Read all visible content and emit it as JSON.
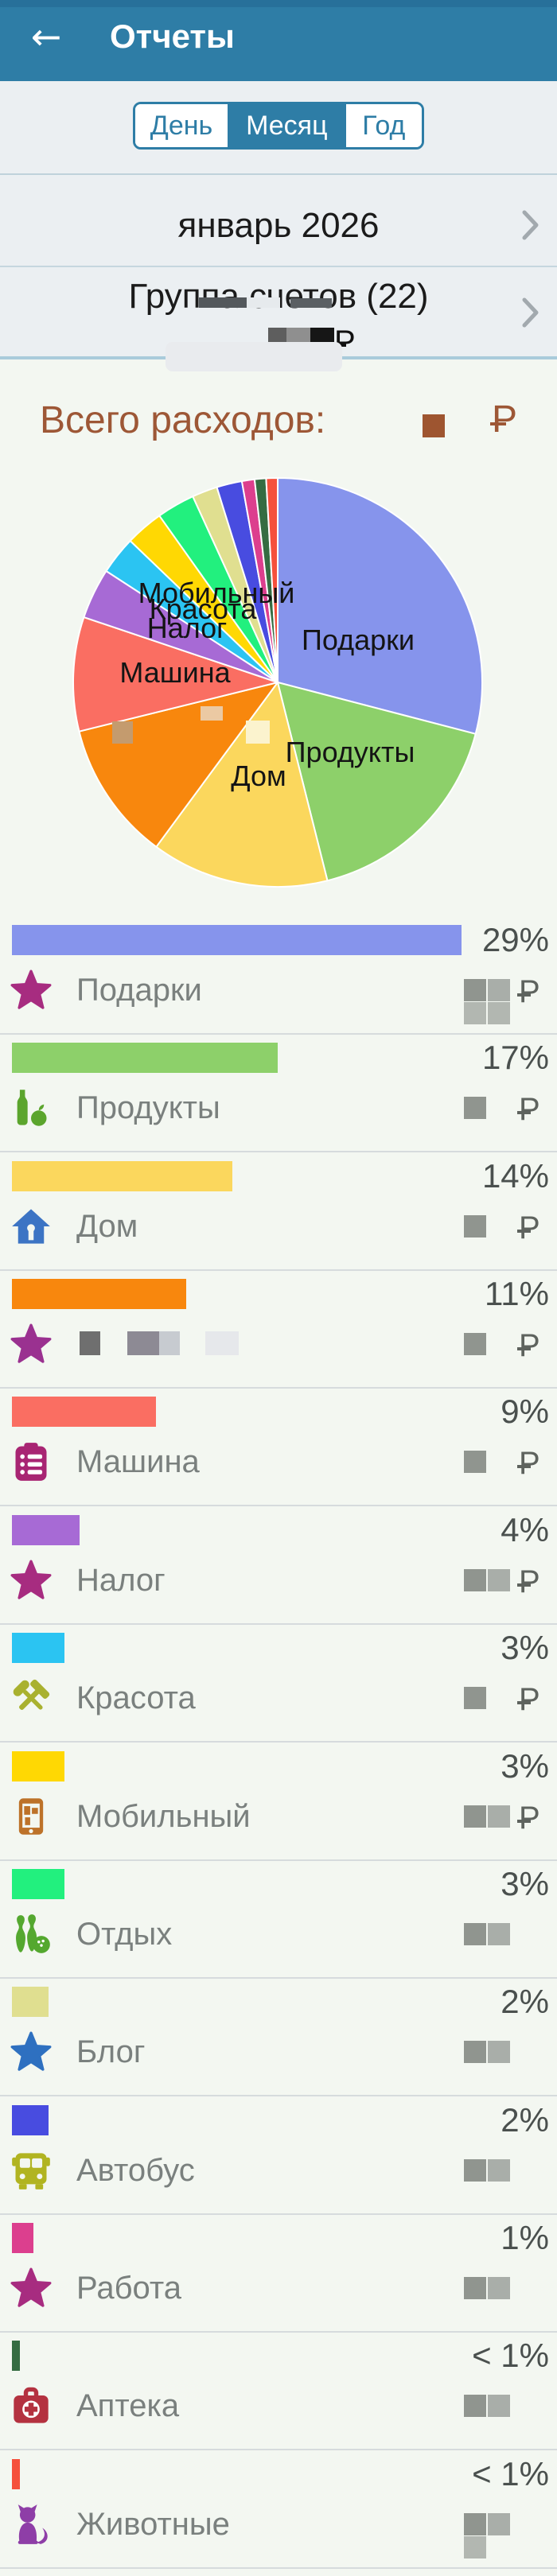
{
  "header": {
    "title": "Отчеты",
    "back_icon": "arrow-left"
  },
  "tabs": {
    "items": [
      {
        "label": "День",
        "selected": false
      },
      {
        "label": "Месяц",
        "selected": true
      },
      {
        "label": "Год",
        "selected": false
      }
    ]
  },
  "filters": {
    "period": "январь 2026",
    "group": "Группа счетов (22)",
    "group_amount_redacted": true,
    "currency": "₽"
  },
  "summary": {
    "total_label": "Всего расходов:",
    "amount_redacted": true,
    "currency": "₽",
    "accent_color": "#9D5736"
  },
  "chart_data": {
    "type": "pie",
    "title": "Всего расходов",
    "unit": "percent",
    "start_angle": "12 o'clock, clockwise",
    "legend_position": "list below chart",
    "slices": [
      {
        "label": "Подарки",
        "value": 29,
        "color": "#8694EC"
      },
      {
        "label": "Продукты",
        "value": 17,
        "color": "#8DD06A"
      },
      {
        "label": "Дом",
        "value": 14,
        "color": "#FBD75D"
      },
      {
        "label": "",
        "value": 11,
        "color": "#F8870D",
        "redacted": true
      },
      {
        "label": "Машина",
        "value": 9,
        "color": "#FA6E62"
      },
      {
        "label": "Налог",
        "value": 4,
        "color": "#A76AD5"
      },
      {
        "label": "Красота",
        "value": 3,
        "color": "#2BC4F2"
      },
      {
        "label": "Мобильный",
        "value": 3,
        "color": "#FFD803"
      },
      {
        "label": "Отдых",
        "value": 3,
        "color": "#22F07E"
      },
      {
        "label": "Блог",
        "value": 2,
        "color": "#E0DF90"
      },
      {
        "label": "Автобус",
        "value": 2,
        "color": "#484CE0"
      },
      {
        "label": "Работа",
        "value": 1,
        "color": "#DC3F8E"
      },
      {
        "label": "Аптека",
        "value": 0.9,
        "color": "#356C42"
      },
      {
        "label": "Животные",
        "value": 0.9,
        "color": "#F5503C"
      }
    ],
    "labels_on_pie": [
      "Подарки",
      "Продукты",
      "Дом",
      "Машина",
      "Налог",
      "Красота",
      "Мобильный"
    ]
  },
  "expenses": [
    {
      "label": "Подарки",
      "percent": "29%",
      "value": 29,
      "color": "#8694EC",
      "icon": "star-icon",
      "icon_color": "#A72C80",
      "amount_redacted": true,
      "currency_visible": true,
      "blocks": 4
    },
    {
      "label": "Продукты",
      "percent": "17%",
      "value": 17,
      "color": "#8DD06A",
      "icon": "groceries-icon",
      "icon_color": "#5BA52D",
      "amount_redacted": true,
      "currency_visible": true,
      "blocks": 1
    },
    {
      "label": "Дом",
      "percent": "14%",
      "value": 14,
      "color": "#FBD75D",
      "icon": "house-icon",
      "icon_color": "#3C74C4",
      "amount_redacted": true,
      "currency_visible": true,
      "blocks": 1
    },
    {
      "label": "",
      "percent": "11%",
      "value": 11,
      "color": "#F8870D",
      "icon": "star-icon",
      "icon_color": "#9A3190",
      "amount_redacted": true,
      "currency_visible": true,
      "blocks": 1,
      "label_redacted": true
    },
    {
      "label": "Машина",
      "percent": "9%",
      "value": 9,
      "color": "#FA6E62",
      "icon": "clipboard-list-icon",
      "icon_color": "#A82573",
      "amount_redacted": true,
      "currency_visible": true,
      "blocks": 1
    },
    {
      "label": "Налог",
      "percent": "4%",
      "value": 4,
      "color": "#A76AD5",
      "icon": "star-icon",
      "icon_color": "#A72C80",
      "amount_redacted": true,
      "currency_visible": true,
      "blocks": 2
    },
    {
      "label": "Красота",
      "percent": "3%",
      "value": 3,
      "color": "#2BC4F2",
      "icon": "tools-icon",
      "icon_color": "#A9B12F",
      "amount_redacted": true,
      "currency_visible": true,
      "blocks": 1
    },
    {
      "label": "Мобильный",
      "percent": "3%",
      "value": 3,
      "color": "#FFD803",
      "icon": "phone-icon",
      "icon_color": "#BD7229",
      "amount_redacted": true,
      "currency_visible": true,
      "blocks": 2
    },
    {
      "label": "Отдых",
      "percent": "3%",
      "value": 3,
      "color": "#22F07E",
      "icon": "bowling-icon",
      "icon_color": "#54A82F",
      "amount_redacted": true,
      "currency_visible": false,
      "blocks": 2
    },
    {
      "label": "Блог",
      "percent": "2%",
      "value": 2,
      "color": "#E0DF90",
      "icon": "star-icon",
      "icon_color": "#2E70C0",
      "amount_redacted": true,
      "currency_visible": false,
      "blocks": 2
    },
    {
      "label": "Автобус",
      "percent": "2%",
      "value": 2,
      "color": "#484CE0",
      "icon": "bus-icon",
      "icon_color": "#B1B421",
      "amount_redacted": true,
      "currency_visible": false,
      "blocks": 2
    },
    {
      "label": "Работа",
      "percent": "1%",
      "value": 1,
      "color": "#DC3F8E",
      "icon": "star-icon",
      "icon_color": "#A72C80",
      "amount_redacted": true,
      "currency_visible": false,
      "blocks": 2
    },
    {
      "label": "Аптека",
      "percent": "< 1%",
      "value": 0.9,
      "color": "#356C42",
      "icon": "first-aid-icon",
      "icon_color": "#B43240",
      "amount_redacted": true,
      "currency_visible": false,
      "blocks": 2
    },
    {
      "label": "Животные",
      "percent": "< 1%",
      "value": 0.9,
      "color": "#F5503C",
      "icon": "cat-icon",
      "icon_color": "#8E3EA7",
      "amount_redacted": true,
      "currency_visible": false,
      "blocks": 3
    }
  ]
}
